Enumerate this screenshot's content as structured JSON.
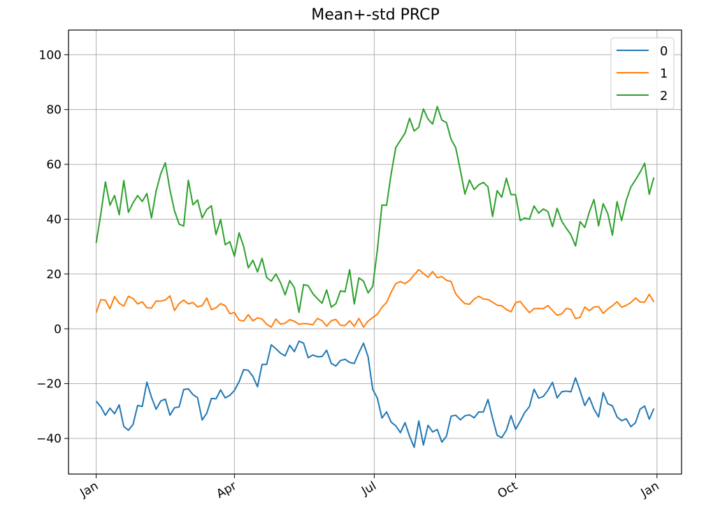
{
  "chart_data": {
    "type": "line",
    "title": "Mean+-std   PRCP",
    "xlabel": "",
    "ylabel": "",
    "x_ticks": [
      "Jan",
      "Apr",
      "Jul",
      "Oct",
      "Jan"
    ],
    "x_tick_days": [
      0,
      90,
      181,
      273,
      365
    ],
    "xlim_days": [
      -18,
      381
    ],
    "y_ticks": [
      100,
      80,
      60,
      40,
      20,
      0,
      -20,
      -40
    ],
    "ylim": [
      -53,
      109
    ],
    "grid": true,
    "legend_position": "top-right",
    "sample_interval_days": 3,
    "series": [
      {
        "name": "0",
        "color": "#1f77b4",
        "keypoints": [
          [
            0,
            -22
          ],
          [
            5,
            -30
          ],
          [
            10,
            -34
          ],
          [
            15,
            -25
          ],
          [
            20,
            -36
          ],
          [
            22,
            -42
          ],
          [
            25,
            -28
          ],
          [
            30,
            -26
          ],
          [
            35,
            -22
          ],
          [
            40,
            -33
          ],
          [
            45,
            -27
          ],
          [
            50,
            -30
          ],
          [
            55,
            -24
          ],
          [
            60,
            -19
          ],
          [
            65,
            -27
          ],
          [
            70,
            -31
          ],
          [
            75,
            -23
          ],
          [
            80,
            -27
          ],
          [
            85,
            -23
          ],
          [
            90,
            -21
          ],
          [
            95,
            -19
          ],
          [
            100,
            -15
          ],
          [
            105,
            -17
          ],
          [
            110,
            -13
          ],
          [
            115,
            -9
          ],
          [
            120,
            -12
          ],
          [
            125,
            -8
          ],
          [
            130,
            -10
          ],
          [
            135,
            -7
          ],
          [
            140,
            -12
          ],
          [
            145,
            -10
          ],
          [
            150,
            -11
          ],
          [
            155,
            -14
          ],
          [
            160,
            -8
          ],
          [
            165,
            -12
          ],
          [
            170,
            -11
          ],
          [
            175,
            -9
          ],
          [
            178,
            -14
          ],
          [
            181,
            -24
          ],
          [
            185,
            -28
          ],
          [
            190,
            -33
          ],
          [
            195,
            -36
          ],
          [
            200,
            -38
          ],
          [
            205,
            -40
          ],
          [
            210,
            -37
          ],
          [
            215,
            -39
          ],
          [
            220,
            -39
          ],
          [
            225,
            -38
          ],
          [
            230,
            -35
          ],
          [
            235,
            -33
          ],
          [
            240,
            -32
          ],
          [
            245,
            -34
          ],
          [
            250,
            -30
          ],
          [
            255,
            -29
          ],
          [
            260,
            -35
          ],
          [
            265,
            -39
          ],
          [
            270,
            -34
          ],
          [
            275,
            -31
          ],
          [
            280,
            -29
          ],
          [
            285,
            -26
          ],
          [
            290,
            -25
          ],
          [
            295,
            -20
          ],
          [
            300,
            -21
          ],
          [
            305,
            -23
          ],
          [
            310,
            -18
          ],
          [
            315,
            -22
          ],
          [
            320,
            -27
          ],
          [
            325,
            -30
          ],
          [
            330,
            -27
          ],
          [
            335,
            -26
          ],
          [
            340,
            -30
          ],
          [
            345,
            -29
          ],
          [
            350,
            -35
          ],
          [
            355,
            -33
          ],
          [
            360,
            -31
          ],
          [
            365,
            -33
          ]
        ],
        "noise": 4.5
      },
      {
        "name": "1",
        "color": "#ff7f0e",
        "keypoints": [
          [
            0,
            8
          ],
          [
            5,
            10
          ],
          [
            10,
            9
          ],
          [
            15,
            11
          ],
          [
            20,
            10
          ],
          [
            25,
            9
          ],
          [
            30,
            8
          ],
          [
            35,
            8
          ],
          [
            40,
            11
          ],
          [
            45,
            12
          ],
          [
            50,
            9
          ],
          [
            55,
            8
          ],
          [
            60,
            11
          ],
          [
            65,
            9
          ],
          [
            70,
            10
          ],
          [
            75,
            9
          ],
          [
            80,
            8
          ],
          [
            85,
            7
          ],
          [
            90,
            5
          ],
          [
            95,
            4
          ],
          [
            100,
            3
          ],
          [
            105,
            3
          ],
          [
            110,
            2
          ],
          [
            115,
            2
          ],
          [
            120,
            3
          ],
          [
            125,
            2
          ],
          [
            130,
            2
          ],
          [
            135,
            1
          ],
          [
            140,
            2
          ],
          [
            145,
            2
          ],
          [
            150,
            2
          ],
          [
            155,
            2
          ],
          [
            160,
            2
          ],
          [
            165,
            2
          ],
          [
            170,
            2
          ],
          [
            175,
            2
          ],
          [
            180,
            4
          ],
          [
            185,
            7
          ],
          [
            190,
            12
          ],
          [
            195,
            16
          ],
          [
            200,
            18
          ],
          [
            205,
            20
          ],
          [
            210,
            21
          ],
          [
            215,
            20
          ],
          [
            220,
            19
          ],
          [
            225,
            18
          ],
          [
            230,
            16
          ],
          [
            235,
            13
          ],
          [
            240,
            11
          ],
          [
            245,
            10
          ],
          [
            250,
            10
          ],
          [
            255,
            9
          ],
          [
            260,
            8
          ],
          [
            265,
            8
          ],
          [
            270,
            8
          ],
          [
            275,
            8
          ],
          [
            280,
            8
          ],
          [
            285,
            7
          ],
          [
            290,
            8
          ],
          [
            295,
            6
          ],
          [
            300,
            7
          ],
          [
            305,
            6
          ],
          [
            310,
            5
          ],
          [
            315,
            6
          ],
          [
            320,
            8
          ],
          [
            325,
            9
          ],
          [
            330,
            7
          ],
          [
            335,
            8
          ],
          [
            340,
            9
          ],
          [
            345,
            9
          ],
          [
            350,
            12
          ],
          [
            355,
            11
          ],
          [
            360,
            12
          ],
          [
            365,
            12
          ]
        ],
        "noise": 2.2
      },
      {
        "name": "2",
        "color": "#2ca02c",
        "keypoints": [
          [
            0,
            38
          ],
          [
            5,
            48
          ],
          [
            10,
            50
          ],
          [
            15,
            48
          ],
          [
            20,
            47
          ],
          [
            25,
            44
          ],
          [
            30,
            45
          ],
          [
            35,
            43
          ],
          [
            40,
            57
          ],
          [
            45,
            58
          ],
          [
            50,
            43
          ],
          [
            55,
            40
          ],
          [
            60,
            48
          ],
          [
            65,
            45
          ],
          [
            70,
            44
          ],
          [
            75,
            40
          ],
          [
            80,
            38
          ],
          [
            85,
            34
          ],
          [
            90,
            32
          ],
          [
            95,
            28
          ],
          [
            100,
            24
          ],
          [
            105,
            22
          ],
          [
            110,
            20
          ],
          [
            115,
            18
          ],
          [
            120,
            16
          ],
          [
            125,
            13
          ],
          [
            130,
            12
          ],
          [
            135,
            13
          ],
          [
            140,
            14
          ],
          [
            145,
            12
          ],
          [
            150,
            13
          ],
          [
            155,
            16
          ],
          [
            160,
            15
          ],
          [
            165,
            17
          ],
          [
            170,
            15
          ],
          [
            175,
            17
          ],
          [
            180,
            22
          ],
          [
            185,
            35
          ],
          [
            190,
            55
          ],
          [
            195,
            62
          ],
          [
            200,
            74
          ],
          [
            205,
            78
          ],
          [
            210,
            77
          ],
          [
            215,
            79
          ],
          [
            220,
            78
          ],
          [
            225,
            74
          ],
          [
            230,
            68
          ],
          [
            235,
            62
          ],
          [
            240,
            55
          ],
          [
            245,
            50
          ],
          [
            250,
            48
          ],
          [
            255,
            45
          ],
          [
            260,
            48
          ],
          [
            265,
            52
          ],
          [
            270,
            50
          ],
          [
            275,
            47
          ],
          [
            280,
            42
          ],
          [
            285,
            38
          ],
          [
            290,
            40
          ],
          [
            295,
            42
          ],
          [
            300,
            38
          ],
          [
            305,
            35
          ],
          [
            310,
            34
          ],
          [
            315,
            40
          ],
          [
            320,
            45
          ],
          [
            325,
            42
          ],
          [
            330,
            43
          ],
          [
            335,
            40
          ],
          [
            340,
            45
          ],
          [
            345,
            48
          ],
          [
            350,
            58
          ],
          [
            355,
            57
          ],
          [
            360,
            55
          ],
          [
            365,
            58
          ]
        ],
        "noise": 7.0
      }
    ]
  }
}
